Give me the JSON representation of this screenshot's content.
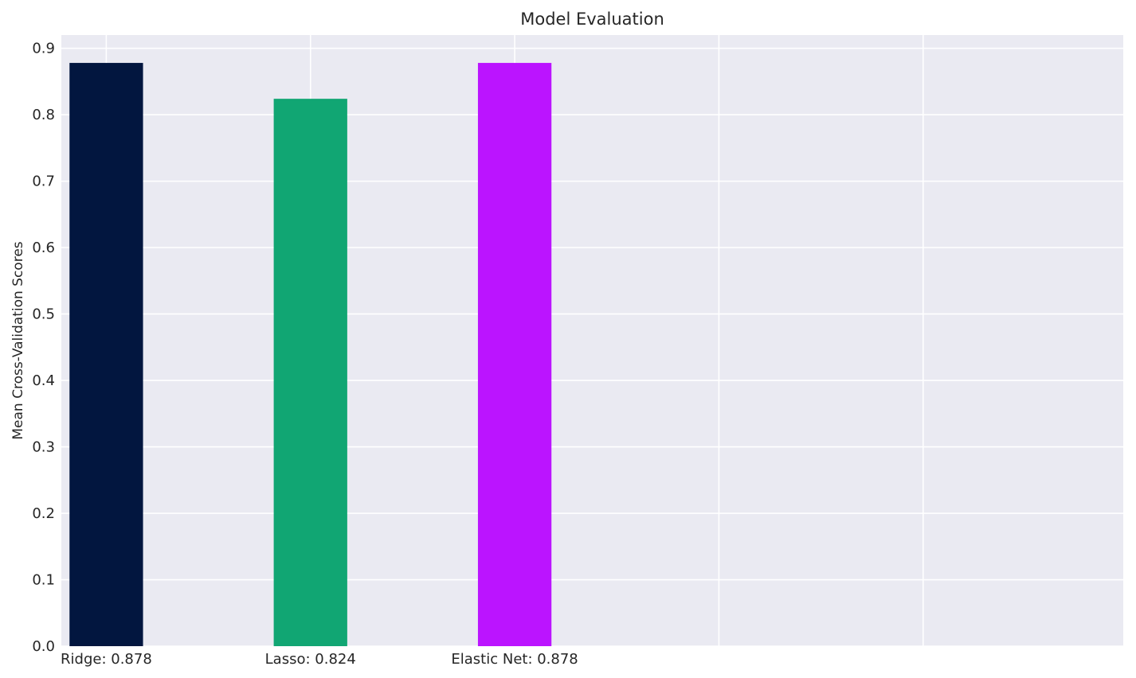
{
  "chart_data": {
    "type": "bar",
    "title": "Model Evaluation",
    "xlabel": "",
    "ylabel": "Mean Cross-Validation Scores",
    "categories": [
      "Ridge: 0.878",
      "Lasso: 0.824",
      "Elastic Net: 0.878"
    ],
    "values": [
      0.878,
      0.824,
      0.878
    ],
    "colors": [
      "#02163f",
      "#11a673",
      "#bb14ff"
    ],
    "ylim": [
      0,
      0.92
    ],
    "yticks": [
      0.0,
      0.1,
      0.2,
      0.3,
      0.4,
      0.5,
      0.6,
      0.7,
      0.8,
      0.9
    ],
    "ytick_labels": [
      "0.0",
      "0.1",
      "0.2",
      "0.3",
      "0.4",
      "0.5",
      "0.6",
      "0.7",
      "0.8",
      "0.9"
    ],
    "xlim": [
      -0.22,
      4.98
    ],
    "xgrid": [
      0,
      1,
      2,
      3,
      4
    ],
    "grid": true,
    "background": "#eaeaf2",
    "grid_color": "#ffffff",
    "text_color": "#262626"
  }
}
